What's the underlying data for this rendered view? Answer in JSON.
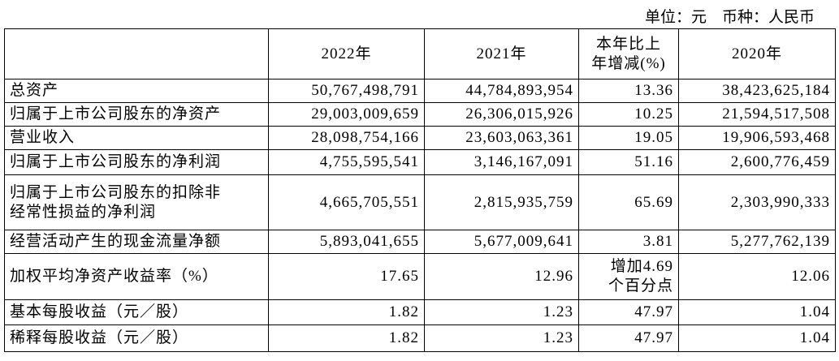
{
  "header": {
    "unit_note": "单位：元　币种：人民币"
  },
  "table": {
    "columns": [
      "",
      "2022年",
      "2021年",
      "本年比上\n年增减(%)",
      "2020年"
    ],
    "rows": [
      [
        "总资产",
        "50,767,498,791",
        "44,784,893,954",
        "13.36",
        "38,423,625,184"
      ],
      [
        "归属于上市公司股东的净资产",
        "29,003,009,659",
        "26,306,015,926",
        "10.25",
        "21,594,517,508"
      ],
      [
        "营业收入",
        "28,098,754,166",
        "23,603,063,361",
        "19.05",
        "19,906,593,468"
      ],
      [
        "归属于上市公司股东的净利润",
        "4,755,595,541",
        "3,146,167,091",
        "51.16",
        "2,600,776,459"
      ],
      [
        "归属于上市公司股东的扣除非\n经常性损益的净利润",
        "4,665,705,551",
        "2,815,935,759",
        "65.69",
        "2,303,990,333"
      ],
      [
        "经营活动产生的现金流量净额",
        "5,893,041,655",
        "5,677,009,641",
        "3.81",
        "5,277,762,139"
      ],
      [
        "加权平均净资产收益率（%）",
        "17.65",
        "12.96",
        "增加4.69\n个百分点",
        "12.06"
      ],
      [
        "基本每股收益（元／股）",
        "1.82",
        "1.23",
        "47.97",
        "1.04"
      ],
      [
        "稀释每股收益（元／股）",
        "1.82",
        "1.23",
        "47.97",
        "1.04"
      ]
    ]
  }
}
